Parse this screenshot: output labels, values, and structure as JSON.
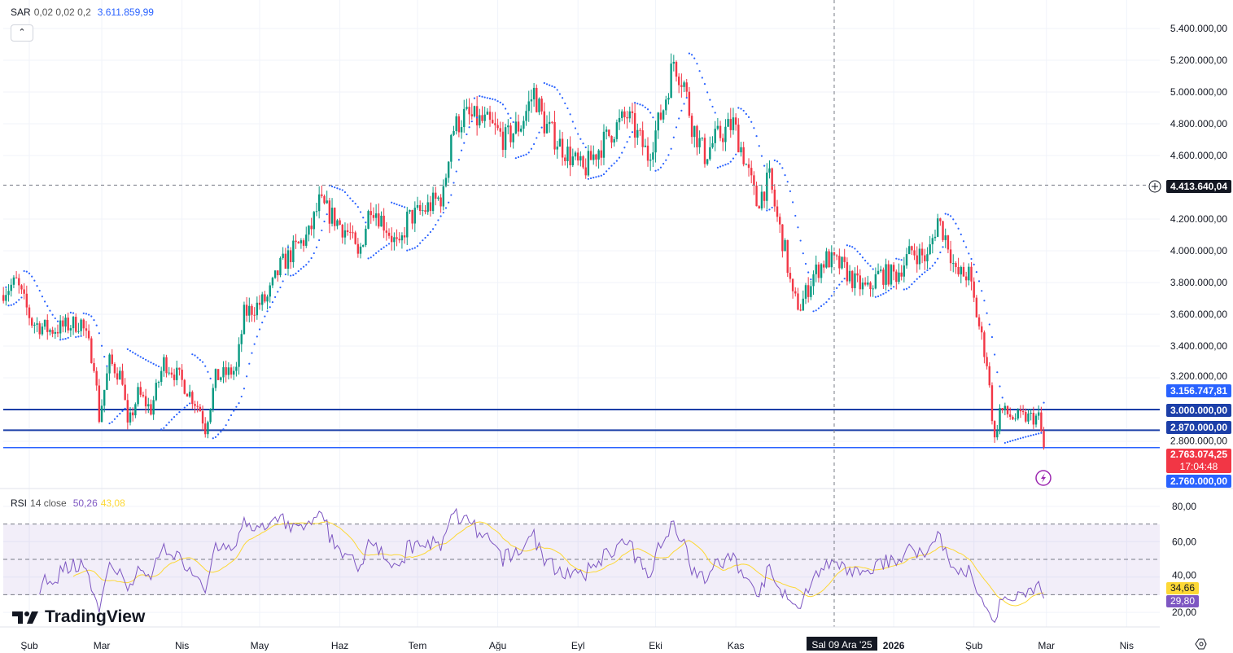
{
  "legend": {
    "sar": {
      "name": "SAR",
      "params": "0,02 0,02 0,2",
      "value": "3.611.859,99"
    },
    "rsi": {
      "name": "RSI",
      "params": "14 close",
      "value": "50,26",
      "ma_value": "43,08"
    }
  },
  "collapse_icon": "chevron-up-icon",
  "logo_text": "TradingView",
  "crosshair": {
    "price_label": "4.413.640,04",
    "date_label": "Sal 09 Ara '25",
    "price": 4413640.04,
    "day": 311
  },
  "price_labels": {
    "sar_next": "3.156.747,81",
    "line_3000": "3.000.000,00",
    "line_2870": "2.870.000,00",
    "last": "2.763.074,25",
    "countdown": "17:04:48",
    "line_2760": "2.760.000,00"
  },
  "rsi_labels": {
    "ma": "34,66",
    "rsi": "29,80"
  },
  "horizontal_lines": [
    3000000,
    2870000,
    2760000
  ],
  "colors": {
    "up": "#089981",
    "down": "#f23645",
    "sar": "#2962ff",
    "rsi": "#7e57c2",
    "rsi_ma": "#fdd835",
    "line_dark": "#1c3fa8",
    "line_light": "#2962ff",
    "last": "#f23645"
  },
  "chart_data": {
    "type": "candlestick",
    "price_axis": {
      "min": 2600000,
      "max": 5500000,
      "ticks": [
        "5.400.000,00",
        "5.200.000,00",
        "5.000.000,00",
        "4.800.000,00",
        "4.600.000,00",
        "4.200.000,00",
        "4.000.000,00",
        "3.800.000,00",
        "3.600.000,00",
        "3.400.000,00",
        "3.200.000,00",
        "2.800.000,00"
      ],
      "tick_values": [
        5400000,
        5200000,
        5000000,
        4800000,
        4600000,
        4200000,
        4000000,
        3800000,
        3600000,
        3400000,
        3200000,
        2800000
      ]
    },
    "rsi_axis": {
      "ticks": [
        "80,00",
        "60,00",
        "40,00",
        "20,00"
      ],
      "tick_values": [
        80,
        60,
        40,
        20
      ],
      "band": [
        30,
        70
      ]
    },
    "time_axis": [
      {
        "label": "Şub",
        "day": 0
      },
      {
        "label": "Mar",
        "day": 28
      },
      {
        "label": "Nis",
        "day": 59
      },
      {
        "label": "May",
        "day": 89
      },
      {
        "label": "Haz",
        "day": 120
      },
      {
        "label": "Tem",
        "day": 150
      },
      {
        "label": "Ağu",
        "day": 181
      },
      {
        "label": "Eyl",
        "day": 212
      },
      {
        "label": "Eki",
        "day": 242
      },
      {
        "label": "Kas",
        "day": 273
      },
      {
        "label": "2026",
        "day": 334
      },
      {
        "label": "Şub",
        "day": 365
      },
      {
        "label": "Mar",
        "day": 393
      },
      {
        "label": "Nis",
        "day": 424
      }
    ],
    "close_path": [
      [
        -10,
        3750000
      ],
      [
        -5,
        3800000
      ],
      [
        1,
        3550000
      ],
      [
        8,
        3500000
      ],
      [
        20,
        3550000
      ],
      [
        25,
        3300000
      ],
      [
        27,
        2950000
      ],
      [
        31,
        3300000
      ],
      [
        36,
        3200000
      ],
      [
        38,
        2880000
      ],
      [
        42,
        3100000
      ],
      [
        47,
        3000000
      ],
      [
        52,
        3300000
      ],
      [
        58,
        3200000
      ],
      [
        66,
        3000000
      ],
      [
        68,
        2880000
      ],
      [
        72,
        3200000
      ],
      [
        80,
        3250000
      ],
      [
        83,
        3600000
      ],
      [
        92,
        3700000
      ],
      [
        97,
        3900000
      ],
      [
        102,
        4000000
      ],
      [
        108,
        4100000
      ],
      [
        112,
        4300000
      ],
      [
        118,
        4200000
      ],
      [
        124,
        4100000
      ],
      [
        127,
        3950000
      ],
      [
        132,
        4300000
      ],
      [
        138,
        4150000
      ],
      [
        143,
        4000000
      ],
      [
        146,
        4200000
      ],
      [
        152,
        4250000
      ],
      [
        160,
        4350000
      ],
      [
        163,
        4750000
      ],
      [
        168,
        4850000
      ],
      [
        177,
        4800000
      ],
      [
        184,
        4700000
      ],
      [
        190,
        4800000
      ],
      [
        195,
        5000000
      ],
      [
        199,
        4800000
      ],
      [
        206,
        4650000
      ],
      [
        214,
        4500000
      ],
      [
        218,
        4600000
      ],
      [
        225,
        4750000
      ],
      [
        231,
        4850000
      ],
      [
        239,
        4600000
      ],
      [
        245,
        4900000
      ],
      [
        249,
        5200000
      ],
      [
        253,
        5050000
      ],
      [
        256,
        4800000
      ],
      [
        261,
        4600000
      ],
      [
        265,
        4700000
      ],
      [
        272,
        4800000
      ],
      [
        276,
        4600000
      ],
      [
        281,
        4300000
      ],
      [
        286,
        4450000
      ],
      [
        289,
        4200000
      ],
      [
        292,
        4000000
      ],
      [
        295,
        3700000
      ],
      [
        298,
        3650000
      ],
      [
        303,
        3850000
      ],
      [
        308,
        3950000
      ],
      [
        314,
        3900000
      ],
      [
        319,
        3800000
      ],
      [
        324,
        3750000
      ],
      [
        328,
        3850000
      ],
      [
        335,
        3850000
      ],
      [
        341,
        4000000
      ],
      [
        347,
        3950000
      ],
      [
        351,
        4200000
      ],
      [
        355,
        4050000
      ],
      [
        358,
        3850000
      ],
      [
        363,
        3850000
      ],
      [
        366,
        3600000
      ],
      [
        370,
        3300000
      ],
      [
        373,
        2800000
      ],
      [
        375,
        3000000
      ],
      [
        380,
        2950000
      ],
      [
        385,
        2950000
      ],
      [
        390,
        2950000
      ],
      [
        392,
        2763074
      ]
    ]
  }
}
